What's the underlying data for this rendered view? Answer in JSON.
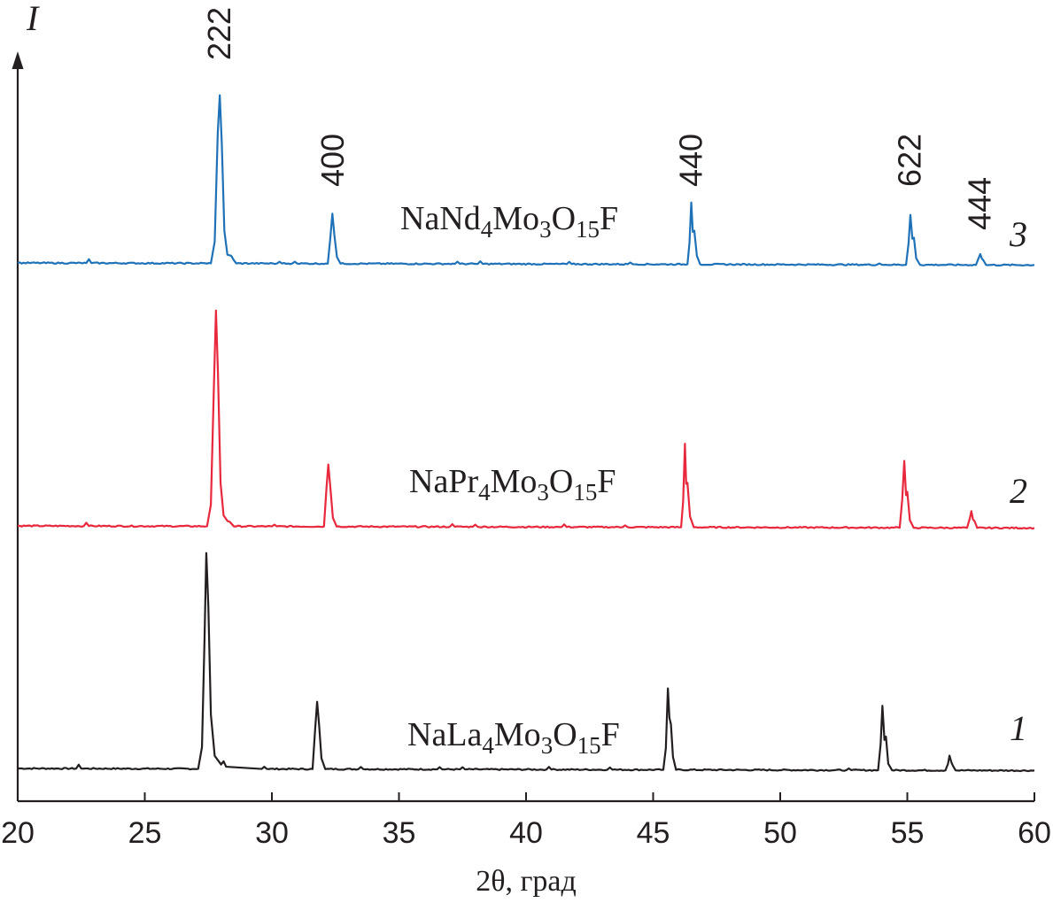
{
  "chart_data": {
    "type": "line",
    "title": "",
    "xlabel": "2θ, град",
    "ylabel": "I",
    "xlim": [
      20,
      60
    ],
    "xticks": [
      20,
      25,
      30,
      35,
      40,
      45,
      50,
      55,
      60
    ],
    "xtick_labels": [
      "20",
      "25",
      "30",
      "35",
      "40",
      "45",
      "50",
      "55",
      "60"
    ],
    "grid": false,
    "legend": "none",
    "peak_labels": [
      {
        "text": "222",
        "x": 27.95
      },
      {
        "text": "400",
        "x": 32.4
      },
      {
        "text": "440",
        "x": 46.5
      },
      {
        "text": "622",
        "x": 55.1
      },
      {
        "text": "444",
        "x": 57.85
      }
    ],
    "series": [
      {
        "number": "1",
        "label": {
          "main": "NaLa",
          "s1": "4",
          "mid": "Mo",
          "s2": "3",
          "mid2": "O",
          "s3": "15",
          "end": "F"
        },
        "color": "#231f20",
        "baseline": 0.0,
        "points": [
          [
            20,
            0
          ],
          [
            22.3,
            0
          ],
          [
            22.4,
            0.018
          ],
          [
            22.5,
            0
          ],
          [
            27.1,
            0
          ],
          [
            27.25,
            0.1
          ],
          [
            27.35,
            0.6
          ],
          [
            27.42,
            0.995
          ],
          [
            27.5,
            0.75
          ],
          [
            27.6,
            0.25
          ],
          [
            27.75,
            0.06
          ],
          [
            28.0,
            0.02
          ],
          [
            28.1,
            0.035
          ],
          [
            28.2,
            0.01
          ],
          [
            29.6,
            0
          ],
          [
            29.7,
            0.01
          ],
          [
            29.8,
            0
          ],
          [
            31.6,
            0
          ],
          [
            31.7,
            0.18
          ],
          [
            31.78,
            0.31
          ],
          [
            31.86,
            0.2
          ],
          [
            31.95,
            0.05
          ],
          [
            32.1,
            0
          ],
          [
            33.4,
            0
          ],
          [
            33.5,
            0.01
          ],
          [
            33.6,
            0
          ],
          [
            36.5,
            0
          ],
          [
            36.6,
            0.01
          ],
          [
            36.7,
            0
          ],
          [
            37.4,
            0
          ],
          [
            37.5,
            0.01
          ],
          [
            37.6,
            0
          ],
          [
            40.8,
            0
          ],
          [
            40.9,
            0.012
          ],
          [
            41.0,
            0
          ],
          [
            43.2,
            0
          ],
          [
            43.3,
            0.01
          ],
          [
            43.4,
            0
          ],
          [
            45.4,
            0
          ],
          [
            45.5,
            0.1
          ],
          [
            45.58,
            0.375
          ],
          [
            45.64,
            0.24
          ],
          [
            45.7,
            0.21
          ],
          [
            45.78,
            0.06
          ],
          [
            45.9,
            0
          ],
          [
            52.6,
            0
          ],
          [
            52.7,
            0.008
          ],
          [
            52.8,
            0
          ],
          [
            53.85,
            0
          ],
          [
            53.95,
            0.12
          ],
          [
            54.02,
            0.297
          ],
          [
            54.1,
            0.14
          ],
          [
            54.16,
            0.155
          ],
          [
            54.25,
            0.03
          ],
          [
            54.4,
            0
          ],
          [
            56.5,
            0
          ],
          [
            56.6,
            0.03
          ],
          [
            56.66,
            0.068
          ],
          [
            56.74,
            0.035
          ],
          [
            56.8,
            0.02
          ],
          [
            56.9,
            0
          ],
          [
            60,
            0
          ]
        ]
      },
      {
        "number": "2",
        "label": {
          "main": "NaPr",
          "s1": "4",
          "mid": "Mo",
          "s2": "3",
          "mid2": "O",
          "s3": "15",
          "end": "F"
        },
        "color": "#e8283c",
        "baseline": 1.1,
        "points": [
          [
            20,
            0
          ],
          [
            22.6,
            0
          ],
          [
            22.7,
            0.015
          ],
          [
            22.8,
            0
          ],
          [
            27.45,
            0
          ],
          [
            27.6,
            0.1
          ],
          [
            27.72,
            0.65
          ],
          [
            27.8,
            0.995
          ],
          [
            27.88,
            0.7
          ],
          [
            27.98,
            0.2
          ],
          [
            28.1,
            0.05
          ],
          [
            28.25,
            0.025
          ],
          [
            28.35,
            0.02
          ],
          [
            28.5,
            0
          ],
          [
            30.0,
            0
          ],
          [
            30.1,
            0.008
          ],
          [
            30.2,
            0
          ],
          [
            32.05,
            0
          ],
          [
            32.15,
            0.18
          ],
          [
            32.22,
            0.286
          ],
          [
            32.3,
            0.18
          ],
          [
            32.4,
            0.04
          ],
          [
            32.55,
            0
          ],
          [
            37.0,
            0
          ],
          [
            37.1,
            0.012
          ],
          [
            37.2,
            0
          ],
          [
            37.9,
            0
          ],
          [
            38.0,
            0.01
          ],
          [
            38.1,
            0
          ],
          [
            41.4,
            0
          ],
          [
            41.5,
            0.012
          ],
          [
            41.6,
            0
          ],
          [
            43.8,
            0
          ],
          [
            43.9,
            0.008
          ],
          [
            44.0,
            0
          ],
          [
            46.1,
            0
          ],
          [
            46.18,
            0.12
          ],
          [
            46.25,
            0.385
          ],
          [
            46.3,
            0.2
          ],
          [
            46.35,
            0.205
          ],
          [
            46.45,
            0.05
          ],
          [
            46.6,
            0
          ],
          [
            54.7,
            0
          ],
          [
            54.8,
            0.13
          ],
          [
            54.88,
            0.308
          ],
          [
            54.95,
            0.15
          ],
          [
            55.0,
            0.165
          ],
          [
            55.1,
            0.035
          ],
          [
            55.25,
            0
          ],
          [
            57.35,
            0
          ],
          [
            57.45,
            0.04
          ],
          [
            57.52,
            0.077
          ],
          [
            57.58,
            0.04
          ],
          [
            57.65,
            0.03
          ],
          [
            57.75,
            0
          ],
          [
            60,
            0
          ]
        ]
      },
      {
        "number": "3",
        "label": {
          "main": "NaNd",
          "s1": "4",
          "mid": "Mo",
          "s2": "3",
          "mid2": "O",
          "s3": "15",
          "end": "F"
        },
        "color": "#1f72b8",
        "baseline": 2.2,
        "points": [
          [
            20,
            0
          ],
          [
            22.7,
            0
          ],
          [
            22.8,
            0.018
          ],
          [
            22.9,
            0
          ],
          [
            27.6,
            0
          ],
          [
            27.75,
            0.1
          ],
          [
            27.87,
            0.6
          ],
          [
            27.95,
            0.775
          ],
          [
            28.03,
            0.55
          ],
          [
            28.13,
            0.15
          ],
          [
            28.25,
            0.04
          ],
          [
            28.4,
            0.035
          ],
          [
            28.5,
            0.015
          ],
          [
            28.6,
            0
          ],
          [
            30.2,
            0
          ],
          [
            30.3,
            0.008
          ],
          [
            30.4,
            0
          ],
          [
            30.8,
            0
          ],
          [
            30.9,
            0.008
          ],
          [
            31.0,
            0
          ],
          [
            32.2,
            0
          ],
          [
            32.3,
            0.12
          ],
          [
            32.38,
            0.23
          ],
          [
            32.46,
            0.13
          ],
          [
            32.56,
            0.03
          ],
          [
            32.7,
            0
          ],
          [
            37.2,
            0
          ],
          [
            37.3,
            0.01
          ],
          [
            37.4,
            0
          ],
          [
            38.1,
            0
          ],
          [
            38.2,
            0.012
          ],
          [
            38.3,
            0
          ],
          [
            41.6,
            0
          ],
          [
            41.7,
            0.01
          ],
          [
            41.8,
            0
          ],
          [
            44.0,
            0
          ],
          [
            44.1,
            0.008
          ],
          [
            44.2,
            0
          ],
          [
            46.35,
            0
          ],
          [
            46.43,
            0.1
          ],
          [
            46.5,
            0.285
          ],
          [
            46.56,
            0.15
          ],
          [
            46.62,
            0.155
          ],
          [
            46.72,
            0.04
          ],
          [
            46.85,
            0
          ],
          [
            53.8,
            0
          ],
          [
            53.9,
            0.006
          ],
          [
            54.0,
            0
          ],
          [
            54.95,
            0
          ],
          [
            55.05,
            0.1
          ],
          [
            55.12,
            0.23
          ],
          [
            55.2,
            0.12
          ],
          [
            55.26,
            0.125
          ],
          [
            55.35,
            0.03
          ],
          [
            55.5,
            0
          ],
          [
            57.7,
            0
          ],
          [
            57.8,
            0.03
          ],
          [
            57.87,
            0.05
          ],
          [
            57.93,
            0.03
          ],
          [
            58.0,
            0.02
          ],
          [
            58.1,
            0
          ],
          [
            60,
            0
          ]
        ]
      }
    ]
  }
}
